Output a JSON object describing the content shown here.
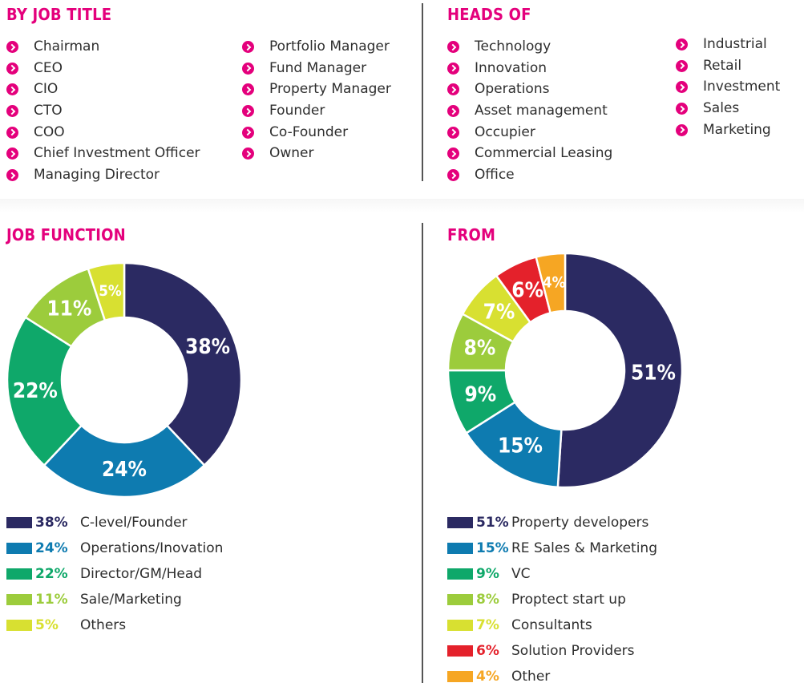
{
  "job_title": {
    "heading": "BY JOB TITLE",
    "col1": [
      "Chairman",
      "CEO",
      "CIO",
      "CTO",
      "COO",
      "Chief Investment Officer",
      "Managing Director"
    ],
    "col2": [
      "Portfolio Manager",
      "Fund Manager",
      "Property Manager",
      "Founder",
      "Co-Founder",
      "Owner"
    ]
  },
  "heads_of": {
    "heading": "HEADS OF",
    "col1": [
      "Technology",
      "Innovation",
      "Operations",
      "Asset management",
      "Occupier",
      "Commercial Leasing",
      "Office"
    ],
    "col2": [
      "Industrial",
      "Retail",
      "Investment",
      "Sales",
      "Marketing"
    ]
  },
  "icons": {
    "bullet": "chevron-right-circle-icon"
  },
  "colors": {
    "accent": "#e4007c"
  },
  "chart_data": [
    {
      "type": "pie",
      "donut": true,
      "title": "JOB FUNCTION",
      "categories": [
        "C-level/Founder",
        "Operations/Inovation",
        "Director/GM/Head",
        "Sale/Marketing",
        "Others"
      ],
      "values": [
        38,
        24,
        22,
        11,
        5
      ],
      "value_labels": [
        "38%",
        "24%",
        "22%",
        "11%",
        "5%"
      ],
      "colors": [
        "#2b2a62",
        "#0e7bb0",
        "#0fa86a",
        "#9ccc3c",
        "#d8e031"
      ],
      "legend_position": "bottom"
    },
    {
      "type": "pie",
      "donut": true,
      "title": "FROM",
      "categories": [
        "Property developers",
        "RE Sales & Marketing",
        "VC",
        "Proptect start up",
        "Consultants",
        "Solution  Providers",
        "Other"
      ],
      "values": [
        51,
        15,
        9,
        8,
        7,
        6,
        4
      ],
      "value_labels": [
        "51%",
        "15%",
        "9%",
        "8%",
        "7%",
        "6%",
        "4%"
      ],
      "colors": [
        "#2b2a62",
        "#0e7bb0",
        "#0fa86a",
        "#9ccc3c",
        "#d8e031",
        "#e4212b",
        "#f6a623"
      ],
      "legend_position": "bottom"
    }
  ]
}
